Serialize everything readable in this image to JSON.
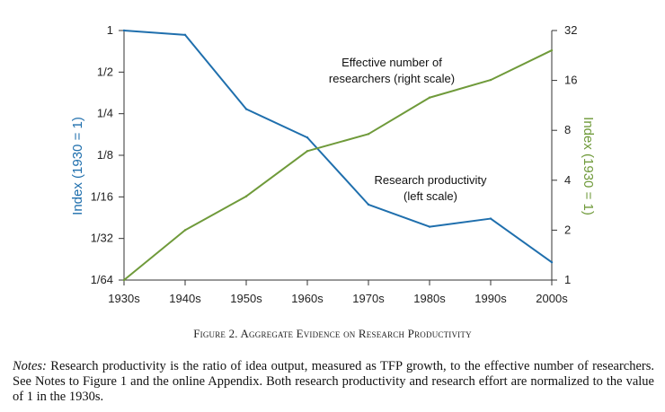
{
  "chart_data": {
    "type": "line",
    "categories": [
      "1930s",
      "1940s",
      "1950s",
      "1960s",
      "1970s",
      "1980s",
      "1990s",
      "2000s"
    ],
    "left_axis": {
      "label": "Index (1930 = 1)",
      "scale": "log2",
      "ylim": [
        0.015625,
        1
      ],
      "ticks": [
        {
          "value": 1,
          "label": "1"
        },
        {
          "value": 0.5,
          "label": "1/2"
        },
        {
          "value": 0.25,
          "label": "1/4"
        },
        {
          "value": 0.125,
          "label": "1/8"
        },
        {
          "value": 0.0625,
          "label": "1/16"
        },
        {
          "value": 0.03125,
          "label": "1/32"
        },
        {
          "value": 0.015625,
          "label": "1/64"
        }
      ],
      "color": "#1f6fad"
    },
    "right_axis": {
      "label": "Index (1930 = 1)",
      "scale": "log2",
      "ylim": [
        1,
        32
      ],
      "ticks": [
        {
          "value": 32,
          "label": "32"
        },
        {
          "value": 16,
          "label": "16"
        },
        {
          "value": 8,
          "label": "8"
        },
        {
          "value": 4,
          "label": "4"
        },
        {
          "value": 2,
          "label": "2"
        },
        {
          "value": 1,
          "label": "1"
        }
      ],
      "color": "#6f9a3a"
    },
    "series": [
      {
        "name": "Research productivity",
        "axis": "left",
        "color": "#1f6fad",
        "values": [
          1,
          0.93,
          0.27,
          0.168,
          0.055,
          0.038,
          0.0435,
          0.021
        ]
      },
      {
        "name": "Effective number of researchers",
        "axis": "right",
        "color": "#6f9a3a",
        "values": [
          1,
          2.0,
          3.2,
          6.0,
          7.6,
          12.6,
          16.1,
          24.3
        ]
      }
    ],
    "annotations": [
      {
        "lines": [
          "Effective number of",
          "researchers (right scale)"
        ],
        "series": "Effective number of researchers"
      },
      {
        "lines": [
          "Research productivity",
          "(left scale)"
        ],
        "series": "Research productivity"
      }
    ]
  },
  "figure": {
    "caption": "Figure 2. Aggregate Evidence on Research Productivity",
    "notes_label": "Notes:",
    "notes_text": " Research productivity is the ratio of idea output, measured as TFP growth, to the effective number of researchers. See Notes to Figure 1 and the online Appendix. Both research productivity and research effort are normalized to the value of 1 in the 1930s."
  }
}
